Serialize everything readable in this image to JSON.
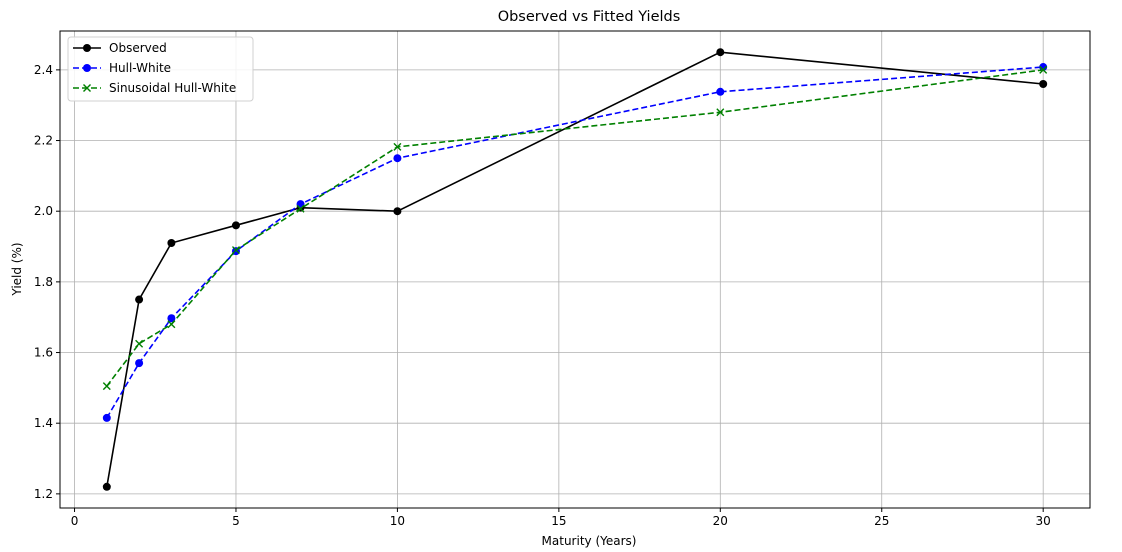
{
  "chart_data": {
    "type": "line",
    "title": "Observed vs Fitted Yields",
    "xlabel": "Maturity (Years)",
    "ylabel": "Yield (%)",
    "xlim": [
      -0.45,
      31.45
    ],
    "ylim": [
      1.16,
      2.51
    ],
    "xticks": [
      0,
      5,
      10,
      15,
      20,
      25,
      30
    ],
    "yticks": [
      1.2,
      1.4,
      1.6,
      1.8,
      2.0,
      2.2,
      2.4
    ],
    "xtick_labels": [
      "0",
      "5",
      "10",
      "15",
      "20",
      "25",
      "30"
    ],
    "ytick_labels": [
      "1.2",
      "1.4",
      "1.6",
      "1.8",
      "2.0",
      "2.2",
      "2.4"
    ],
    "grid": true,
    "legend_position": "top-left",
    "x": [
      1,
      2,
      3,
      5,
      7,
      10,
      20,
      30
    ],
    "series": [
      {
        "name": "Observed",
        "values": [
          1.22,
          1.75,
          1.91,
          1.96,
          2.01,
          2.0,
          2.45,
          2.36
        ],
        "color": "#000000",
        "line_style": "solid",
        "marker": "circle"
      },
      {
        "name": "Hull-White",
        "values": [
          1.415,
          1.57,
          1.697,
          1.887,
          2.02,
          2.15,
          2.338,
          2.408
        ],
        "color": "#0000ff",
        "line_style": "dashed",
        "marker": "circle"
      },
      {
        "name": "Sinusoidal Hull-White",
        "values": [
          1.505,
          1.625,
          1.68,
          1.89,
          2.007,
          2.182,
          2.28,
          2.4
        ],
        "color": "#008000",
        "line_style": "dashed",
        "marker": "x"
      }
    ]
  }
}
